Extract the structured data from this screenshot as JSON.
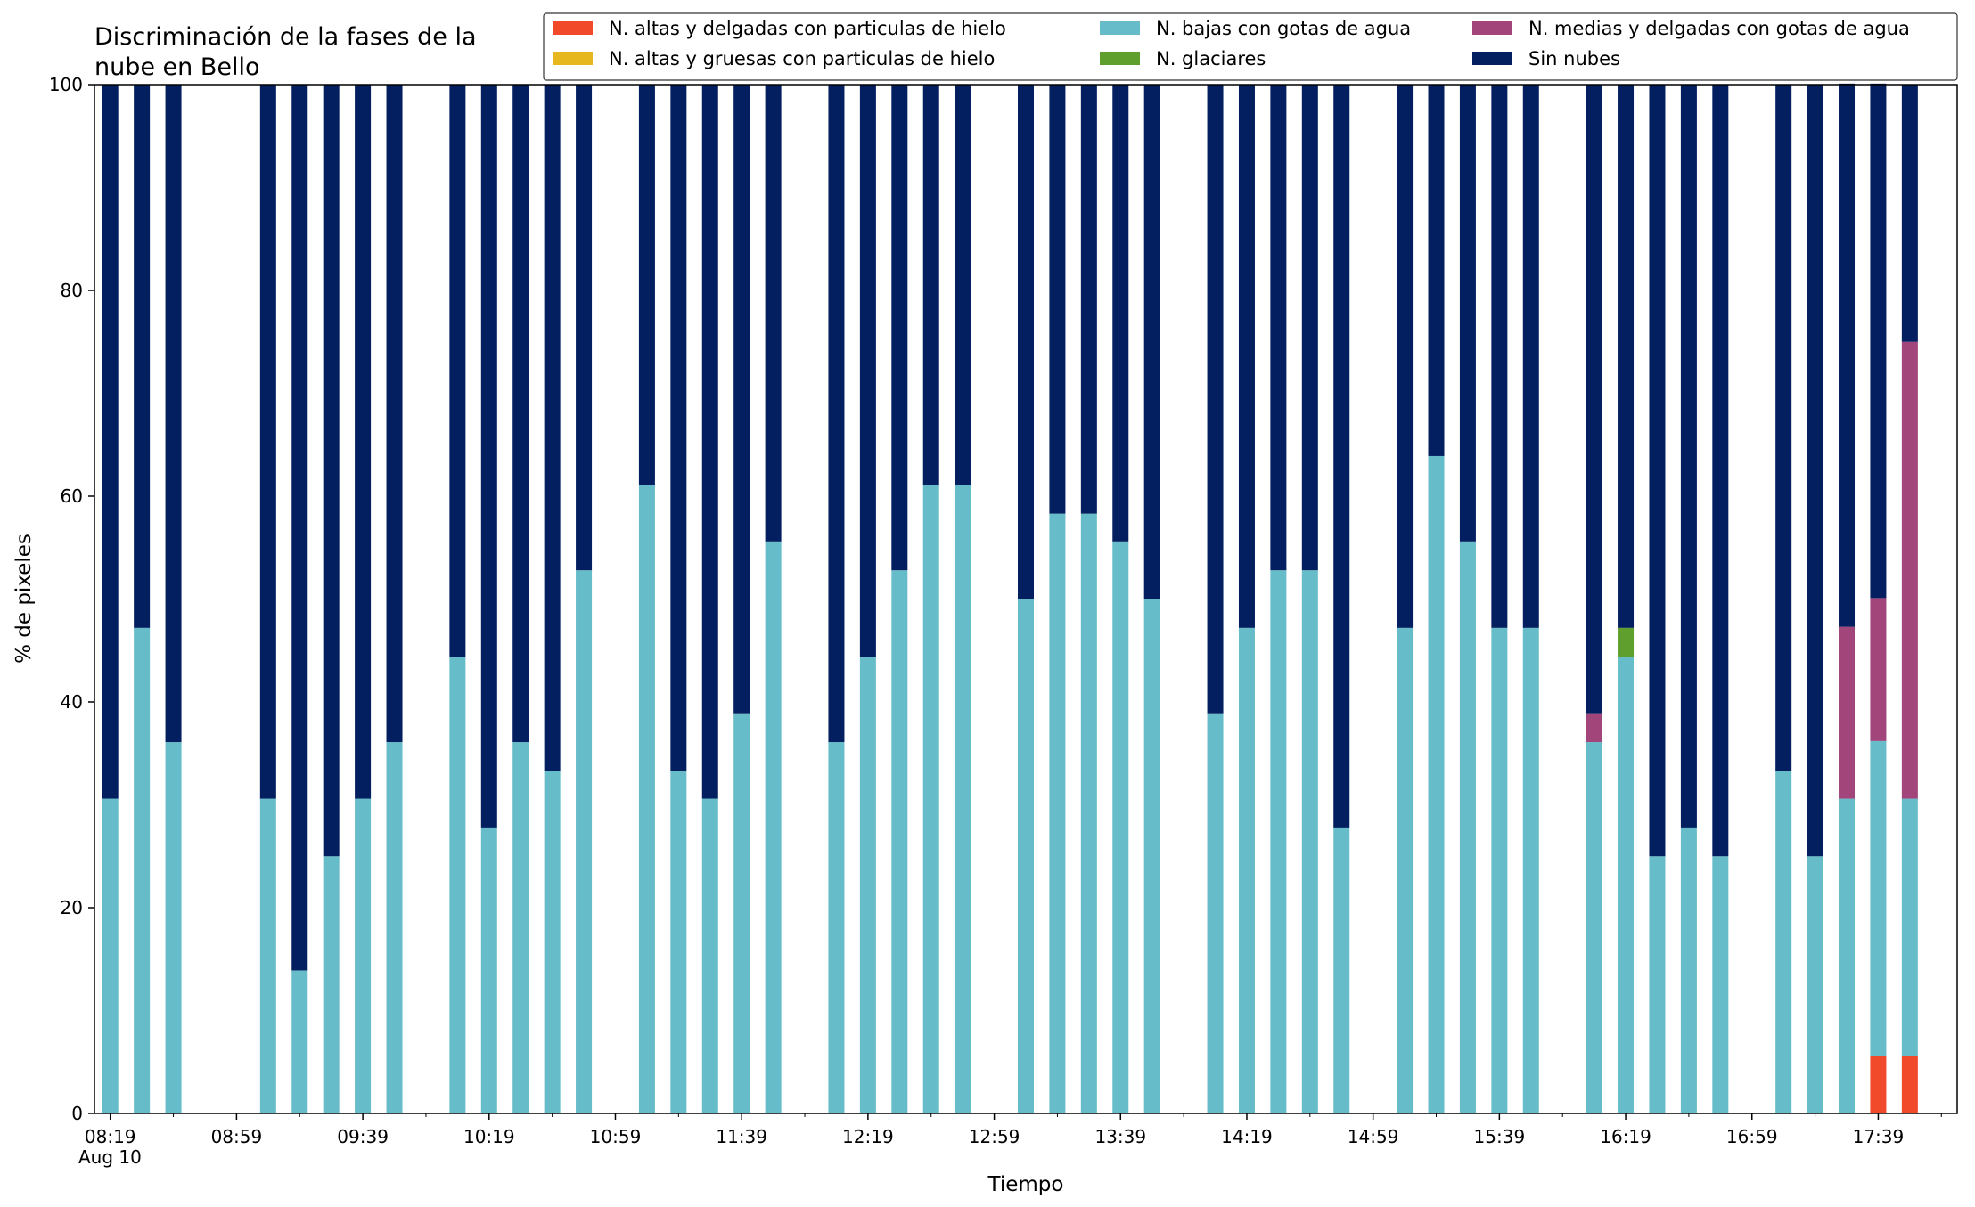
{
  "chart_data": {
    "type": "bar",
    "stacked": true,
    "title": "Discriminación de la fases de la nube en Bello",
    "title_lines": [
      "Discriminación de la fases de la",
      "nube en Bello"
    ],
    "xlabel": "Tiempo",
    "ylabel": "% de pixeles",
    "ylim": [
      0,
      100
    ],
    "yticks": [
      0,
      20,
      40,
      60,
      80,
      100
    ],
    "x_date_label": "Aug 10",
    "grid": false,
    "legend_position": "top-right",
    "xticks": [
      "08:19",
      "08:59",
      "09:39",
      "10:19",
      "10:59",
      "11:39",
      "12:19",
      "12:59",
      "13:39",
      "14:19",
      "14:59",
      "15:39",
      "16:19",
      "16:59",
      "17:39"
    ],
    "x_start": "08:19",
    "x_end": "17:59",
    "x": [
      "08:19",
      "08:29",
      "08:39",
      "09:09",
      "09:19",
      "09:29",
      "09:39",
      "09:49",
      "10:09",
      "10:19",
      "10:29",
      "10:39",
      "10:49",
      "11:09",
      "11:19",
      "11:29",
      "11:39",
      "11:49",
      "12:09",
      "12:19",
      "12:29",
      "12:39",
      "12:49",
      "13:09",
      "13:19",
      "13:29",
      "13:39",
      "13:49",
      "14:09",
      "14:19",
      "14:29",
      "14:39",
      "14:49",
      "15:09",
      "15:19",
      "15:29",
      "15:39",
      "15:49",
      "16:09",
      "16:19",
      "16:29",
      "16:39",
      "16:49",
      "17:09",
      "17:19",
      "17:29",
      "17:39",
      "17:49"
    ],
    "series": [
      {
        "name": "N. altas y delgadas con particulas de hielo",
        "color": "#f04a2a",
        "values": [
          0,
          0,
          0,
          0,
          0,
          0,
          0,
          0,
          0,
          0,
          0,
          0,
          0,
          0,
          0,
          0,
          0,
          0,
          0,
          0,
          0,
          0,
          0,
          0,
          0,
          0,
          0,
          0,
          0,
          0,
          0,
          0,
          0,
          0,
          0,
          0,
          0,
          0,
          0,
          0,
          0,
          0,
          0,
          0,
          0,
          0,
          5.6,
          5.6
        ]
      },
      {
        "name": "N. altas y gruesas con particulas de hielo",
        "color": "#e6b71e",
        "values": [
          0,
          0,
          0,
          0,
          0,
          0,
          0,
          0,
          0,
          0,
          0,
          0,
          0,
          0,
          0,
          0,
          0,
          0,
          0,
          0,
          0,
          0,
          0,
          0,
          0,
          0,
          0,
          0,
          0,
          0,
          0,
          0,
          0,
          0,
          0,
          0,
          0,
          0,
          0,
          0,
          0,
          0,
          0,
          0,
          0,
          0,
          0,
          0
        ]
      },
      {
        "name": "N. bajas con gotas de agua",
        "color": "#66bcc8",
        "values": [
          30.6,
          47.2,
          36.1,
          30.6,
          13.9,
          25,
          30.6,
          36.1,
          44.4,
          27.8,
          36.1,
          33.3,
          52.8,
          61.1,
          33.3,
          30.6,
          38.9,
          55.6,
          36.1,
          44.4,
          52.8,
          61.1,
          61.1,
          50,
          58.3,
          58.3,
          55.6,
          50,
          38.9,
          47.2,
          52.8,
          52.8,
          27.8,
          47.2,
          63.9,
          55.6,
          47.2,
          47.2,
          36.1,
          44.4,
          25,
          27.8,
          25,
          33.3,
          25,
          30.6,
          30.6,
          25
        ]
      },
      {
        "name": "N. glaciares",
        "color": "#5e9f2d",
        "values": [
          0,
          0,
          0,
          0,
          0,
          0,
          0,
          0,
          0,
          0,
          0,
          0,
          0,
          0,
          0,
          0,
          0,
          0,
          0,
          0,
          0,
          0,
          0,
          0,
          0,
          0,
          0,
          0,
          0,
          0,
          0,
          0,
          0,
          0,
          0,
          0,
          0,
          0,
          0,
          2.8,
          0,
          0,
          0,
          0,
          0,
          0,
          0,
          0
        ]
      },
      {
        "name": "N. medias y delgadas con gotas de agua",
        "color": "#a2457a",
        "values": [
          0,
          0,
          0,
          0,
          0,
          0,
          0,
          0,
          0,
          0,
          0,
          0,
          0,
          0,
          0,
          0,
          0,
          0,
          0,
          0,
          0,
          0,
          0,
          0,
          0,
          0,
          0,
          0,
          0,
          0,
          0,
          0,
          0,
          0,
          0,
          0,
          0,
          0,
          2.8,
          0,
          0,
          0,
          0,
          0,
          0,
          16.7,
          13.9,
          44.4
        ]
      },
      {
        "name": "Sin nubes",
        "color": "#031f5f",
        "values": [
          69.4,
          52.8,
          63.9,
          69.4,
          86.1,
          75,
          69.4,
          63.9,
          55.6,
          72.2,
          63.9,
          66.7,
          47.2,
          38.9,
          66.7,
          69.4,
          61.1,
          44.4,
          63.9,
          55.6,
          47.2,
          38.9,
          38.9,
          50,
          41.7,
          41.7,
          44.4,
          50,
          61.1,
          52.8,
          47.2,
          47.2,
          72.2,
          52.8,
          36.1,
          44.4,
          52.8,
          52.8,
          61.1,
          52.8,
          75,
          72.2,
          75,
          66.7,
          75,
          52.8,
          50,
          25
        ]
      }
    ]
  }
}
